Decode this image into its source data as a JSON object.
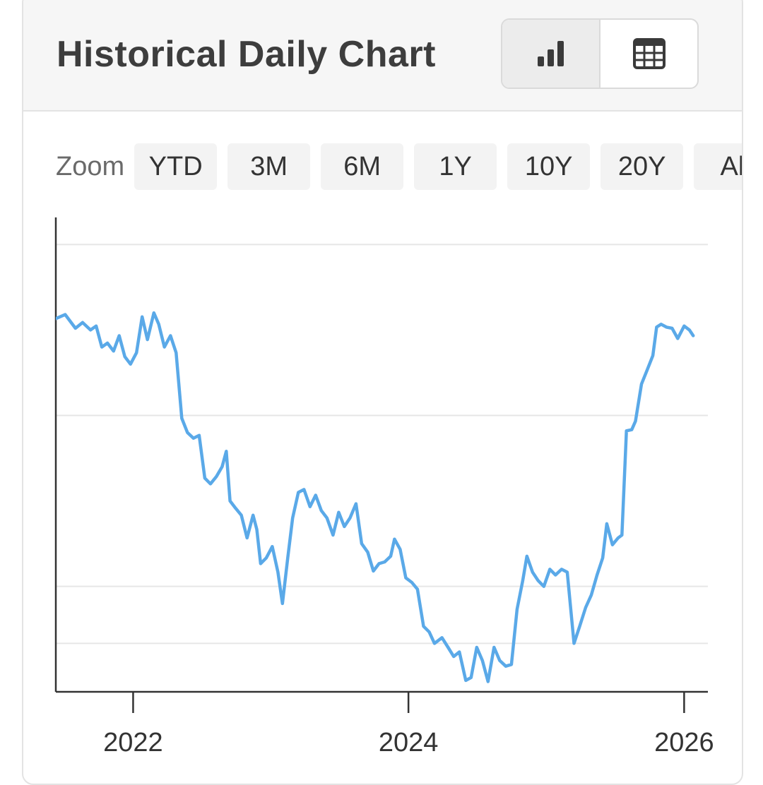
{
  "header": {
    "title": "Historical Daily Chart",
    "view_toggle": [
      {
        "icon": "bar-chart-icon",
        "active": true
      },
      {
        "icon": "table-icon",
        "active": false
      }
    ]
  },
  "zoom": {
    "label": "Zoom",
    "options": [
      "YTD",
      "3M",
      "6M",
      "1Y",
      "10Y",
      "20Y",
      "All"
    ]
  },
  "colors": {
    "line": "#5aa9e8",
    "grid": "#e6e6e6",
    "axis": "#333333",
    "title": "#3d3d3d"
  },
  "chart_data": {
    "type": "line",
    "title": "",
    "xlabel": "",
    "ylabel": "",
    "x_ticks": [
      "2022",
      "2024",
      "2026"
    ],
    "xlim": [
      "2021-06-10",
      "2026-03-05"
    ],
    "grid": true,
    "legend": "none",
    "series": [
      {
        "values": [
          [
            "2021-06-10",
            6.55
          ],
          [
            "2021-07-05",
            6.62
          ],
          [
            "2021-08-01",
            6.38
          ],
          [
            "2021-08-20",
            6.48
          ],
          [
            "2021-09-10",
            6.35
          ],
          [
            "2021-09-25",
            6.42
          ],
          [
            "2021-10-10",
            6.05
          ],
          [
            "2021-10-25",
            6.12
          ],
          [
            "2021-11-10",
            5.98
          ],
          [
            "2021-11-25",
            6.25
          ],
          [
            "2021-12-10",
            5.88
          ],
          [
            "2021-12-25",
            5.75
          ],
          [
            "2022-01-10",
            5.95
          ],
          [
            "2022-01-25",
            6.58
          ],
          [
            "2022-02-08",
            6.18
          ],
          [
            "2022-02-25",
            6.65
          ],
          [
            "2022-03-10",
            6.45
          ],
          [
            "2022-03-25",
            6.05
          ],
          [
            "2022-04-10",
            6.25
          ],
          [
            "2022-04-25",
            5.95
          ],
          [
            "2022-05-10",
            4.8
          ],
          [
            "2022-05-25",
            4.55
          ],
          [
            "2022-06-10",
            4.45
          ],
          [
            "2022-06-25",
            4.5
          ],
          [
            "2022-07-10",
            3.75
          ],
          [
            "2022-07-25",
            3.65
          ],
          [
            "2022-08-10",
            3.78
          ],
          [
            "2022-08-25",
            3.95
          ],
          [
            "2022-09-05",
            4.22
          ],
          [
            "2022-09-15",
            3.35
          ],
          [
            "2022-09-30",
            3.22
          ],
          [
            "2022-10-15",
            3.1
          ],
          [
            "2022-10-30",
            2.7
          ],
          [
            "2022-11-15",
            3.1
          ],
          [
            "2022-11-25",
            2.85
          ],
          [
            "2022-12-05",
            2.25
          ],
          [
            "2022-12-20",
            2.35
          ],
          [
            "2023-01-05",
            2.55
          ],
          [
            "2023-01-20",
            2.1
          ],
          [
            "2023-02-01",
            1.55
          ],
          [
            "2023-02-15",
            2.35
          ],
          [
            "2023-02-28",
            3.05
          ],
          [
            "2023-03-15",
            3.5
          ],
          [
            "2023-03-30",
            3.55
          ],
          [
            "2023-04-15",
            3.25
          ],
          [
            "2023-04-30",
            3.45
          ],
          [
            "2023-05-15",
            3.18
          ],
          [
            "2023-05-30",
            3.05
          ],
          [
            "2023-06-15",
            2.75
          ],
          [
            "2023-06-30",
            3.15
          ],
          [
            "2023-07-15",
            2.9
          ],
          [
            "2023-07-30",
            3.05
          ],
          [
            "2023-08-15",
            3.3
          ],
          [
            "2023-08-30",
            2.6
          ],
          [
            "2023-09-15",
            2.45
          ],
          [
            "2023-09-30",
            2.12
          ],
          [
            "2023-10-15",
            2.25
          ],
          [
            "2023-10-30",
            2.28
          ],
          [
            "2023-11-15",
            2.38
          ],
          [
            "2023-11-25",
            2.68
          ],
          [
            "2023-12-10",
            2.5
          ],
          [
            "2023-12-25",
            2.0
          ],
          [
            "2024-01-10",
            1.92
          ],
          [
            "2024-01-25",
            1.8
          ],
          [
            "2024-02-10",
            1.15
          ],
          [
            "2024-02-25",
            1.05
          ],
          [
            "2024-03-10",
            0.85
          ],
          [
            "2024-03-30",
            0.95
          ],
          [
            "2024-04-15",
            0.78
          ],
          [
            "2024-04-30",
            0.62
          ],
          [
            "2024-05-15",
            0.7
          ],
          [
            "2024-06-01",
            0.2
          ],
          [
            "2024-06-15",
            0.25
          ],
          [
            "2024-06-30",
            0.78
          ],
          [
            "2024-07-15",
            0.55
          ],
          [
            "2024-07-30",
            0.18
          ],
          [
            "2024-08-15",
            0.78
          ],
          [
            "2024-08-30",
            0.55
          ],
          [
            "2024-09-15",
            0.45
          ],
          [
            "2024-09-30",
            0.48
          ],
          [
            "2024-10-15",
            1.45
          ],
          [
            "2024-10-30",
            1.95
          ],
          [
            "2024-11-10",
            2.38
          ],
          [
            "2024-11-25",
            2.1
          ],
          [
            "2024-12-10",
            1.95
          ],
          [
            "2024-12-25",
            1.85
          ],
          [
            "2025-01-10",
            2.15
          ],
          [
            "2025-01-25",
            2.05
          ],
          [
            "2025-02-10",
            2.15
          ],
          [
            "2025-02-25",
            2.1
          ],
          [
            "2025-03-15",
            0.85
          ],
          [
            "2025-03-30",
            1.15
          ],
          [
            "2025-04-15",
            1.48
          ],
          [
            "2025-04-30",
            1.7
          ],
          [
            "2025-05-15",
            2.05
          ],
          [
            "2025-05-30",
            2.35
          ],
          [
            "2025-06-10",
            2.95
          ],
          [
            "2025-06-25",
            2.58
          ],
          [
            "2025-07-10",
            2.7
          ],
          [
            "2025-07-20",
            2.75
          ],
          [
            "2025-08-01",
            4.58
          ],
          [
            "2025-08-15",
            4.6
          ],
          [
            "2025-08-25",
            4.75
          ],
          [
            "2025-09-10",
            5.4
          ],
          [
            "2025-09-25",
            5.65
          ],
          [
            "2025-10-10",
            5.9
          ],
          [
            "2025-10-20",
            6.4
          ],
          [
            "2025-11-01",
            6.45
          ],
          [
            "2025-11-15",
            6.4
          ],
          [
            "2025-11-30",
            6.38
          ],
          [
            "2025-12-15",
            6.2
          ],
          [
            "2026-01-01",
            6.42
          ],
          [
            "2026-01-15",
            6.35
          ],
          [
            "2026-01-25",
            6.25
          ]
        ]
      }
    ]
  }
}
